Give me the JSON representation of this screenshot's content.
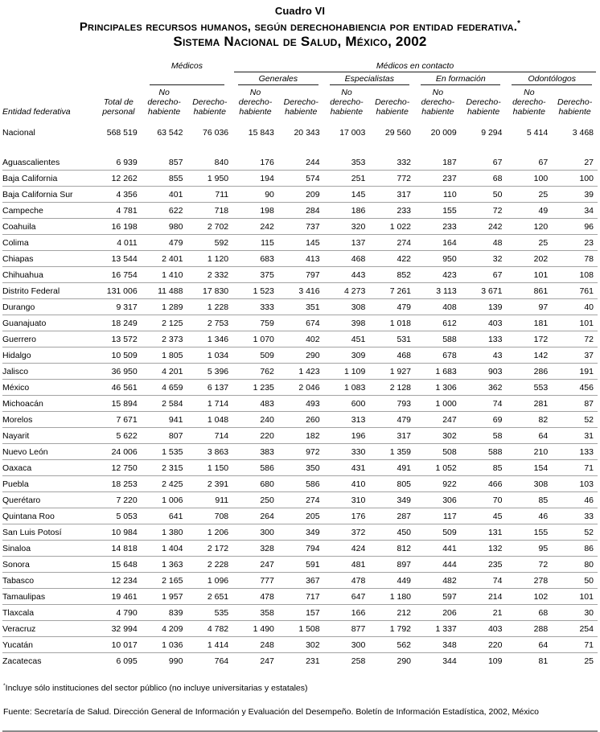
{
  "title": {
    "caption": "Cuadro VI",
    "line2": "Principales recursos humanos, según derechohabiencia por entidad federativa.",
    "line2_mark": "*",
    "line3": "Sistema Nacional de Salud, México, 2002"
  },
  "table": {
    "groups": {
      "medicos": "Médicos",
      "contacto": "Médicos en contacto"
    },
    "subgroups": [
      "Generales",
      "Especialistas",
      "En formación",
      "Odontólogos"
    ],
    "col_headers": {
      "entidad": "Entidad federativa",
      "total": [
        "Total de",
        "personal"
      ],
      "no_derecho": [
        "No derecho-",
        "habiente"
      ],
      "derecho": [
        "Derecho-",
        "habiente"
      ]
    },
    "national": {
      "label": "Nacional",
      "values": [
        "568 519",
        "63 542",
        "76 036",
        "15 843",
        "20 343",
        "17 003",
        "29 560",
        "20 009",
        "9 294",
        "5 414",
        "3 468"
      ]
    },
    "rows": [
      {
        "label": "Aguascalientes",
        "values": [
          "6 939",
          "857",
          "840",
          "176",
          "244",
          "353",
          "332",
          "187",
          "67",
          "67",
          "27"
        ]
      },
      {
        "label": "Baja California",
        "values": [
          "12 262",
          "855",
          "1 950",
          "194",
          "574",
          "251",
          "772",
          "237",
          "68",
          "100",
          "100"
        ]
      },
      {
        "label": "Baja California Sur",
        "values": [
          "4 356",
          "401",
          "711",
          "90",
          "209",
          "145",
          "317",
          "110",
          "50",
          "25",
          "39"
        ]
      },
      {
        "label": "Campeche",
        "values": [
          "4 781",
          "622",
          "718",
          "198",
          "284",
          "186",
          "233",
          "155",
          "72",
          "49",
          "34"
        ]
      },
      {
        "label": "Coahuila",
        "values": [
          "16 198",
          "980",
          "2 702",
          "242",
          "737",
          "320",
          "1 022",
          "233",
          "242",
          "120",
          "96"
        ]
      },
      {
        "label": "Colima",
        "values": [
          "4 011",
          "479",
          "592",
          "115",
          "145",
          "137",
          "274",
          "164",
          "48",
          "25",
          "23"
        ]
      },
      {
        "label": "Chiapas",
        "values": [
          "13 544",
          "2 401",
          "1 120",
          "683",
          "413",
          "468",
          "422",
          "950",
          "32",
          "202",
          "78"
        ]
      },
      {
        "label": "Chihuahua",
        "values": [
          "16 754",
          "1 410",
          "2 332",
          "375",
          "797",
          "443",
          "852",
          "423",
          "67",
          "101",
          "108"
        ]
      },
      {
        "label": "Distrito Federal",
        "values": [
          "131 006",
          "11 488",
          "17 830",
          "1 523",
          "3 416",
          "4 273",
          "7 261",
          "3 113",
          "3 671",
          "861",
          "761"
        ]
      },
      {
        "label": "Durango",
        "values": [
          "9 317",
          "1 289",
          "1 228",
          "333",
          "351",
          "308",
          "479",
          "408",
          "139",
          "97",
          "40"
        ]
      },
      {
        "label": "Guanajuato",
        "values": [
          "18 249",
          "2 125",
          "2 753",
          "759",
          "674",
          "398",
          "1 018",
          "612",
          "403",
          "181",
          "101"
        ]
      },
      {
        "label": "Guerrero",
        "values": [
          "13 572",
          "2 373",
          "1 346",
          "1 070",
          "402",
          "451",
          "531",
          "588",
          "133",
          "172",
          "72"
        ]
      },
      {
        "label": "Hidalgo",
        "values": [
          "10 509",
          "1 805",
          "1 034",
          "509",
          "290",
          "309",
          "468",
          "678",
          "43",
          "142",
          "37"
        ]
      },
      {
        "label": "Jalisco",
        "values": [
          "36 950",
          "4 201",
          "5 396",
          "762",
          "1 423",
          "1 109",
          "1 927",
          "1 683",
          "903",
          "286",
          "191"
        ]
      },
      {
        "label": "México",
        "values": [
          "46 561",
          "4 659",
          "6 137",
          "1 235",
          "2 046",
          "1 083",
          "2 128",
          "1 306",
          "362",
          "553",
          "456"
        ]
      },
      {
        "label": "Michoacán",
        "values": [
          "15 894",
          "2 584",
          "1 714",
          "483",
          "493",
          "600",
          "793",
          "1 000",
          "74",
          "281",
          "87"
        ]
      },
      {
        "label": "Morelos",
        "values": [
          "7 671",
          "941",
          "1 048",
          "240",
          "260",
          "313",
          "479",
          "247",
          "69",
          "82",
          "52"
        ]
      },
      {
        "label": "Nayarit",
        "values": [
          "5 622",
          "807",
          "714",
          "220",
          "182",
          "196",
          "317",
          "302",
          "58",
          "64",
          "31"
        ]
      },
      {
        "label": "Nuevo León",
        "values": [
          "24 006",
          "1 535",
          "3 863",
          "383",
          "972",
          "330",
          "1 359",
          "508",
          "588",
          "210",
          "133"
        ]
      },
      {
        "label": "Oaxaca",
        "values": [
          "12 750",
          "2 315",
          "1 150",
          "586",
          "350",
          "431",
          "491",
          "1 052",
          "85",
          "154",
          "71"
        ]
      },
      {
        "label": "Puebla",
        "values": [
          "18 253",
          "2 425",
          "2 391",
          "680",
          "586",
          "410",
          "805",
          "922",
          "466",
          "308",
          "103"
        ]
      },
      {
        "label": "Querétaro",
        "values": [
          "7 220",
          "1 006",
          "911",
          "250",
          "274",
          "310",
          "349",
          "306",
          "70",
          "85",
          "46"
        ]
      },
      {
        "label": "Quintana Roo",
        "values": [
          "5 053",
          "641",
          "708",
          "264",
          "205",
          "176",
          "287",
          "117",
          "45",
          "46",
          "33"
        ]
      },
      {
        "label": "San Luis Potosí",
        "values": [
          "10 984",
          "1 380",
          "1 206",
          "300",
          "349",
          "372",
          "450",
          "509",
          "131",
          "155",
          "52"
        ]
      },
      {
        "label": "Sinaloa",
        "values": [
          "14 818",
          "1 404",
          "2 172",
          "328",
          "794",
          "424",
          "812",
          "441",
          "132",
          "95",
          "86"
        ]
      },
      {
        "label": "Sonora",
        "values": [
          "15 648",
          "1 363",
          "2 228",
          "247",
          "591",
          "481",
          "897",
          "444",
          "235",
          "72",
          "80"
        ]
      },
      {
        "label": "Tabasco",
        "values": [
          "12 234",
          "2 165",
          "1 096",
          "777",
          "367",
          "478",
          "449",
          "482",
          "74",
          "278",
          "50"
        ]
      },
      {
        "label": "Tamaulipas",
        "values": [
          "19 461",
          "1 957",
          "2 651",
          "478",
          "717",
          "647",
          "1 180",
          "597",
          "214",
          "102",
          "101"
        ]
      },
      {
        "label": "Tlaxcala",
        "values": [
          "4 790",
          "839",
          "535",
          "358",
          "157",
          "166",
          "212",
          "206",
          "21",
          "68",
          "30"
        ]
      },
      {
        "label": "Veracruz",
        "values": [
          "32 994",
          "4 209",
          "4 782",
          "1 490",
          "1 508",
          "877",
          "1 792",
          "1 337",
          "403",
          "288",
          "254"
        ]
      },
      {
        "label": "Yucatán",
        "values": [
          "10 017",
          "1 036",
          "1 414",
          "248",
          "302",
          "300",
          "562",
          "348",
          "220",
          "64",
          "71"
        ]
      },
      {
        "label": "Zacatecas",
        "values": [
          "6 095",
          "990",
          "764",
          "247",
          "231",
          "258",
          "290",
          "344",
          "109",
          "81",
          "25"
        ]
      }
    ]
  },
  "footnote": {
    "mark": "*",
    "text": "Incluye sólo instituciones del sector público (no incluye universitarias y estatales)"
  },
  "source": "Fuente: Secretaría de Salud. Dirección General de Información y Evaluación del Desempeño. Boletín de Información Estadística, 2002, México"
}
